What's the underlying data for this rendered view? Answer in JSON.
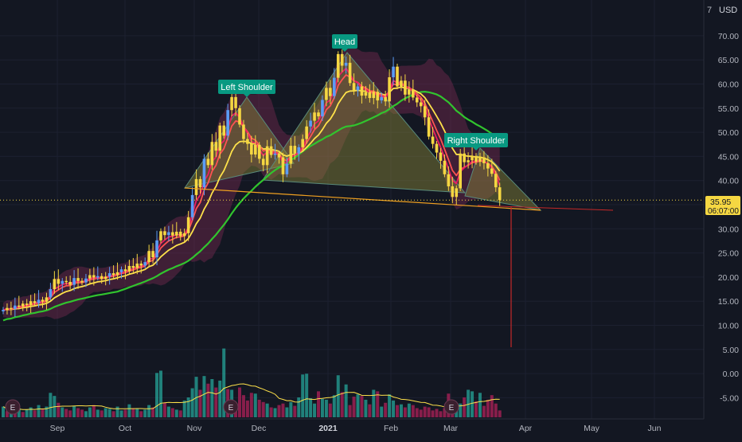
{
  "currency": "USD",
  "top_tick_fragment": "7",
  "price_label": "35.95",
  "countdown": "06:07:00",
  "colors": {
    "background": "#131722",
    "up": "#f5d742",
    "up_alt": "#5b9cf6",
    "down": "#f5d742",
    "ema_fast": "#e91e63",
    "ema_mid": "#ff5252",
    "sma_yellow": "#ffe24a",
    "sma_green": "#31c42e",
    "band": "#7b2a53",
    "pattern_fill": "#8b8a3a",
    "label_bg": "#089981",
    "vol_up": "#26a69a",
    "vol_down": "#b0225a",
    "price_tag": "#f5d742",
    "neckline": "#f0a020",
    "target_line": "#c62828"
  },
  "chart_data": {
    "type": "candlestick",
    "y_axis": {
      "ticks": [
        "70.00",
        "65.00",
        "60.00",
        "55.00",
        "50.00",
        "45.00",
        "40.00",
        "35.00",
        "30.00",
        "25.00",
        "20.00",
        "15.00",
        "10.00",
        "5.00",
        "0.00",
        "-5.00"
      ],
      "ylim": [
        -5,
        73
      ]
    },
    "x_axis": {
      "ticks": [
        {
          "label": "Sep",
          "bold": false
        },
        {
          "label": "Oct",
          "bold": false
        },
        {
          "label": "Nov",
          "bold": false
        },
        {
          "label": "Dec",
          "bold": false
        },
        {
          "label": "2021",
          "bold": true
        },
        {
          "label": "Feb",
          "bold": false
        },
        {
          "label": "Mar",
          "bold": false
        },
        {
          "label": "Apr",
          "bold": false
        },
        {
          "label": "May",
          "bold": false
        },
        {
          "label": "Jun",
          "bold": false
        }
      ]
    },
    "annotations": [
      {
        "text": "Left Shoulder"
      },
      {
        "text": "Head"
      },
      {
        "text": "Right Shoulder"
      }
    ],
    "earnings_markers": [
      "E",
      "E",
      "E"
    ],
    "last_price": 35.95,
    "closes": [
      13.2,
      13.6,
      13.4,
      14.1,
      13.9,
      14.5,
      14.2,
      15.0,
      14.6,
      15.3,
      14.9,
      15.8,
      17.5,
      19.6,
      18.6,
      19.2,
      19.0,
      18.4,
      19.8,
      19.2,
      18.9,
      19.7,
      20.4,
      19.9,
      20.2,
      19.6,
      20.1,
      20.8,
      20.4,
      21.0,
      21.6,
      21.2,
      22.3,
      21.9,
      22.8,
      22.4,
      23.1,
      25.4,
      24.1,
      27.6,
      29.5,
      28.7,
      29.3,
      28.6,
      29.4,
      28.5,
      29.1,
      32.4,
      37.0,
      40.3,
      38.6,
      44.5,
      43.2,
      48.0,
      46.2,
      51.4,
      49.3,
      54.6,
      57.3,
      55.0,
      51.6,
      48.6,
      47.6,
      45.4,
      47.4,
      44.5,
      43.2,
      47.1,
      45.3,
      45.6,
      44.8,
      41.3,
      43.5,
      47.2,
      45.6,
      46.9,
      48.6,
      51.2,
      52.4,
      54.1,
      53.3,
      56.7,
      59.2,
      57.5,
      61.3,
      66.2,
      63.8,
      64.4,
      60.2,
      58.7,
      59.5,
      57.6,
      58.3,
      57.1,
      58.4,
      56.6,
      57.3,
      56.4,
      61.4,
      63.6,
      59.5,
      60.7,
      57.8,
      58.9,
      57.2,
      56.2,
      55.4,
      53.1,
      49.1,
      47.6,
      45.8,
      44.1,
      41.3,
      38.8,
      36.6,
      38.4,
      45.6,
      43.8,
      44.2,
      45.1,
      43.9,
      44.8,
      43.6,
      42.5,
      41.4,
      38.6,
      35.95
    ],
    "volumes": [
      1.4,
      0.8,
      1.1,
      0.9,
      1.2,
      0.7,
      1.0,
      1.3,
      0.9,
      1.6,
      1.1,
      1.4,
      3.2,
      2.8,
      1.9,
      1.3,
      1.1,
      0.9,
      1.5,
      1.2,
      1.0,
      0.8,
      1.3,
      1.6,
      1.0,
      0.9,
      1.2,
      1.1,
      0.8,
      1.4,
      0.9,
      1.0,
      1.7,
      1.2,
      1.1,
      0.8,
      1.0,
      1.6,
      1.3,
      5.8,
      6.1,
      1.9,
      1.4,
      1.2,
      1.0,
      0.9,
      2.2,
      2.6,
      3.8,
      5.3,
      3.6,
      5.4,
      4.4,
      5.0,
      3.9,
      4.8,
      9.0,
      3.7,
      3.6,
      1.9,
      3.9,
      2.9,
      2.2,
      3.2,
      3.1,
      2.3,
      2.0,
      1.8,
      1.3,
      1.2,
      1.6,
      1.8,
      1.3,
      2.0,
      1.5,
      2.6,
      5.6,
      5.7,
      2.5,
      1.8,
      3.4,
      2.4,
      2.3,
      1.8,
      2.9,
      5.5,
      3.3,
      4.3,
      1.6,
      2.7,
      3.0,
      2.8,
      2.3,
      1.7,
      3.6,
      3.4,
      1.4,
      1.9,
      3.0,
      2.2,
      1.6,
      1.7,
      1.3,
      1.8,
      1.6,
      1.2,
      1.0,
      1.4,
      1.3,
      0.9,
      1.1,
      0.8,
      1.2,
      3.1,
      2.2,
      1.6,
      1.8,
      2.6,
      3.6,
      3.4,
      2.1,
      3.2,
      1.5,
      2.3,
      2.9,
      1.8,
      0.9
    ],
    "volume_up": [
      1,
      0,
      1,
      0,
      1,
      0,
      1,
      1,
      0,
      1,
      0,
      1,
      1,
      1,
      0,
      1,
      0,
      0,
      1,
      0,
      0,
      1,
      1,
      0,
      1,
      0,
      1,
      1,
      0,
      1,
      1,
      0,
      1,
      0,
      1,
      0,
      1,
      1,
      0,
      1,
      1,
      0,
      1,
      0,
      1,
      0,
      1,
      1,
      1,
      1,
      0,
      1,
      0,
      1,
      0,
      1,
      1,
      0,
      1,
      0,
      0,
      0,
      0,
      0,
      1,
      0,
      0,
      1,
      0,
      1,
      0,
      0,
      1,
      1,
      0,
      1,
      1,
      1,
      1,
      1,
      0,
      1,
      1,
      0,
      1,
      1,
      0,
      1,
      0,
      0,
      1,
      0,
      1,
      0,
      1,
      0,
      1,
      0,
      1,
      1,
      0,
      1,
      0,
      1,
      0,
      0,
      0,
      0,
      0,
      0,
      0,
      0,
      0,
      0,
      0,
      1,
      1,
      0,
      1,
      1,
      0,
      1,
      0,
      0,
      0,
      0,
      0
    ]
  }
}
